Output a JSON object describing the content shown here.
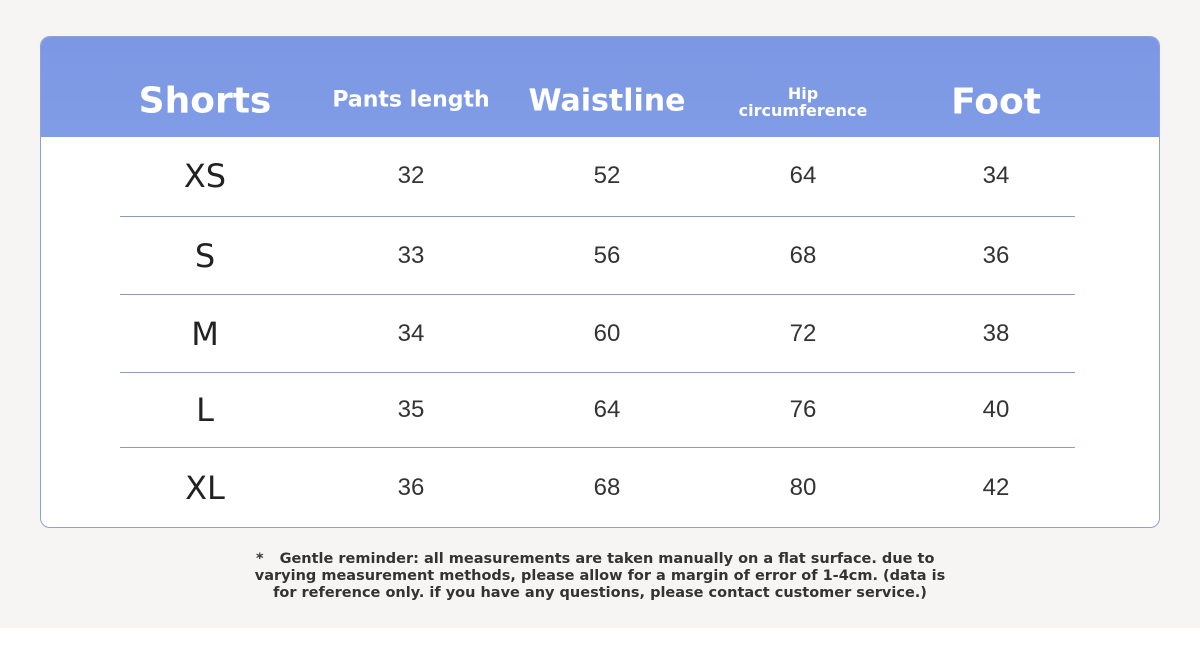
{
  "table": {
    "header": [
      "Shorts",
      "Pants length",
      "Waistline",
      "Hip circumference",
      "Foot"
    ],
    "rows": [
      [
        "XS",
        32,
        52,
        64,
        34
      ],
      [
        "S",
        33,
        56,
        68,
        36
      ],
      [
        "M",
        34,
        60,
        72,
        38
      ],
      [
        "L",
        35,
        64,
        76,
        40
      ],
      [
        "XL",
        36,
        68,
        80,
        42
      ]
    ]
  },
  "note": {
    "marker": "*",
    "lines": [
      "Gentle reminder: all measurements are taken manually on a flat surface. due to",
      "varying measurement methods, please allow for a margin of error of 1-4cm. (data is",
      "for reference only. if you have any questions, please contact customer service.)"
    ]
  }
}
